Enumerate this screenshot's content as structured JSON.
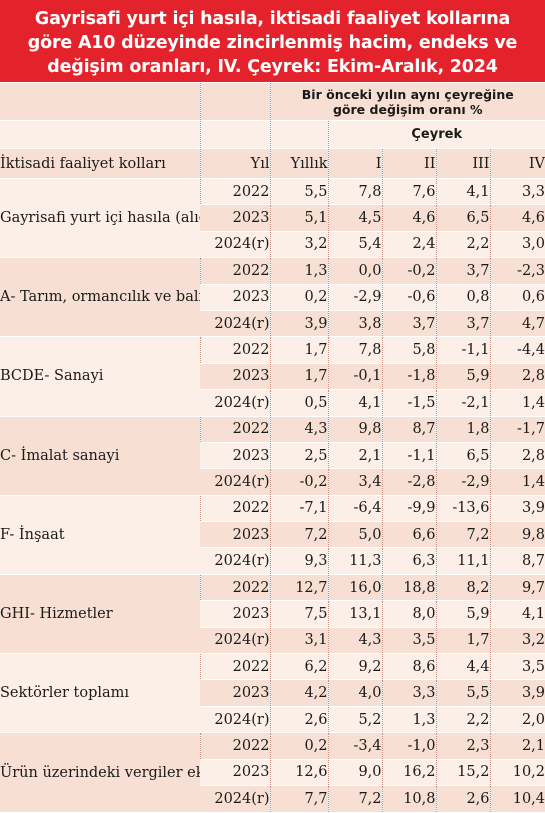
{
  "title_lines": [
    "Gayrisafi yurt içi hasıla, iktisadi faaliyet kollarına",
    "göre A10 düzeyinde zincirlenmiş hacim, endeks ve",
    "değişim oranları, IV. Çeyrek: Ekim-Aralık, 2024"
  ],
  "header": {
    "caption_line1": "Bir önceki yılın aynı çeyreğine",
    "caption_line2": "göre değişim oranı %",
    "quarter_group": "Çeyrek",
    "col_sector": "İktisadi faaliyet kolları",
    "col_year": "Yıl",
    "col_annual": "Yıllık",
    "col_q1": "I",
    "col_q2": "II",
    "col_q3": "III",
    "col_q4": "IV"
  },
  "sectors": [
    {
      "label": "Gayrisafi yurt içi hasıla (alıcı fiyatlarıyla)",
      "rows": [
        {
          "year": "2022",
          "annual": "5,5",
          "q1": "7,8",
          "q2": "7,6",
          "q3": "4,1",
          "q4": "3,3"
        },
        {
          "year": "2023",
          "annual": "5,1",
          "q1": "4,5",
          "q2": "4,6",
          "q3": "6,5",
          "q4": "4,6"
        },
        {
          "year": "2024(r)",
          "annual": "3,2",
          "q1": "5,4",
          "q2": "2,4",
          "q3": "2,2",
          "q4": "3,0"
        }
      ]
    },
    {
      "label": "A- Tarım, ormancılık ve balıkçılık",
      "rows": [
        {
          "year": "2022",
          "annual": "1,3",
          "q1": "0,0",
          "q2": "-0,2",
          "q3": "3,7",
          "q4": "-2,3"
        },
        {
          "year": "2023",
          "annual": "0,2",
          "q1": "-2,9",
          "q2": "-0,6",
          "q3": "0,8",
          "q4": "0,6"
        },
        {
          "year": "2024(r)",
          "annual": "3,9",
          "q1": "3,8",
          "q2": "3,7",
          "q3": "3,7",
          "q4": "4,7"
        }
      ]
    },
    {
      "label": "BCDE- Sanayi",
      "rows": [
        {
          "year": "2022",
          "annual": "1,7",
          "q1": "7,8",
          "q2": "5,8",
          "q3": "-1,1",
          "q4": "-4,4"
        },
        {
          "year": "2023",
          "annual": "1,7",
          "q1": "-0,1",
          "q2": "-1,8",
          "q3": "5,9",
          "q4": "2,8"
        },
        {
          "year": "2024(r)",
          "annual": "0,5",
          "q1": "4,1",
          "q2": "-1,5",
          "q3": "-2,1",
          "q4": "1,4"
        }
      ]
    },
    {
      "label": "C- İmalat sanayi",
      "rows": [
        {
          "year": "2022",
          "annual": "4,3",
          "q1": "9,8",
          "q2": "8,7",
          "q3": "1,8",
          "q4": "-1,7"
        },
        {
          "year": "2023",
          "annual": "2,5",
          "q1": "2,1",
          "q2": "-1,1",
          "q3": "6,5",
          "q4": "2,8"
        },
        {
          "year": "2024(r)",
          "annual": "-0,2",
          "q1": "3,4",
          "q2": "-2,8",
          "q3": "-2,9",
          "q4": "1,4"
        }
      ]
    },
    {
      "label": "F- İnşaat",
      "rows": [
        {
          "year": "2022",
          "annual": "-7,1",
          "q1": "-6,4",
          "q2": "-9,9",
          "q3": "-13,6",
          "q4": "3,9"
        },
        {
          "year": "2023",
          "annual": "7,2",
          "q1": "5,0",
          "q2": "6,6",
          "q3": "7,2",
          "q4": "9,8"
        },
        {
          "year": "2024(r)",
          "annual": "9,3",
          "q1": "11,3",
          "q2": "6,3",
          "q3": "11,1",
          "q4": "8,7"
        }
      ]
    },
    {
      "label": "GHI- Hizmetler",
      "rows": [
        {
          "year": "2022",
          "annual": "12,7",
          "q1": "16,0",
          "q2": "18,8",
          "q3": "8,2",
          "q4": "9,7"
        },
        {
          "year": "2023",
          "annual": "7,5",
          "q1": "13,1",
          "q2": "8,0",
          "q3": "5,9",
          "q4": "4,1"
        },
        {
          "year": "2024(r)",
          "annual": "3,1",
          "q1": "4,3",
          "q2": "3,5",
          "q3": "1,7",
          "q4": "3,2"
        }
      ]
    },
    {
      "label": "Sektörler toplamı",
      "rows": [
        {
          "year": "2022",
          "annual": "6,2",
          "q1": "9,2",
          "q2": "8,6",
          "q3": "4,4",
          "q4": "3,5"
        },
        {
          "year": "2023",
          "annual": "4,2",
          "q1": "4,0",
          "q2": "3,3",
          "q3": "5,5",
          "q4": "3,9"
        },
        {
          "year": "2024(r)",
          "annual": "2,6",
          "q1": "5,2",
          "q2": "1,3",
          "q3": "2,2",
          "q4": "2,0"
        }
      ]
    },
    {
      "label": "Ürün üzerindeki vergiler eksi sübvansiyonlar",
      "rows": [
        {
          "year": "2022",
          "annual": "0,2",
          "q1": "-3,4",
          "q2": "-1,0",
          "q3": "2,3",
          "q4": "2,1"
        },
        {
          "year": "2023",
          "annual": "12,6",
          "q1": "9,0",
          "q2": "16,2",
          "q3": "15,2",
          "q4": "10,2"
        },
        {
          "year": "2024(r)",
          "annual": "7,7",
          "q1": "7,2",
          "q2": "10,8",
          "q3": "2,6",
          "q4": "10,4"
        }
      ]
    }
  ],
  "colors": {
    "title_bg": "#e3222b",
    "row_dark": "#f8dfd3",
    "row_light": "#fcefe8"
  }
}
